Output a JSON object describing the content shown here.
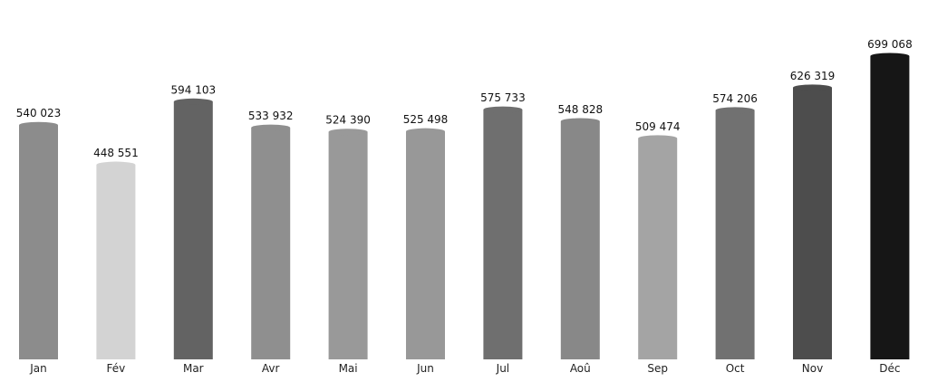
{
  "chart_data": {
    "type": "bar",
    "categories": [
      "Jan",
      "Fév",
      "Mar",
      "Avr",
      "Mai",
      "Jun",
      "Jul",
      "Aoû",
      "Sep",
      "Oct",
      "Nov",
      "Déc"
    ],
    "values": [
      540023,
      448551,
      594103,
      533932,
      524390,
      525498,
      575733,
      548828,
      509474,
      574206,
      626319,
      699068
    ],
    "value_labels": [
      "540 023",
      "448 551",
      "594 103",
      "533 932",
      "524 390",
      "525 498",
      "575 733",
      "548 828",
      "509 474",
      "574 206",
      "626 319",
      "699 068"
    ],
    "bar_colors": [
      "#8c8c8c",
      "#d3d3d3",
      "#636363",
      "#8f8f8f",
      "#999999",
      "#989898",
      "#6f6f6f",
      "#888888",
      "#a4a4a4",
      "#717171",
      "#4d4d4d",
      "#161616"
    ],
    "ylim": [
      0,
      699068
    ],
    "grid": false,
    "legend": "none"
  }
}
